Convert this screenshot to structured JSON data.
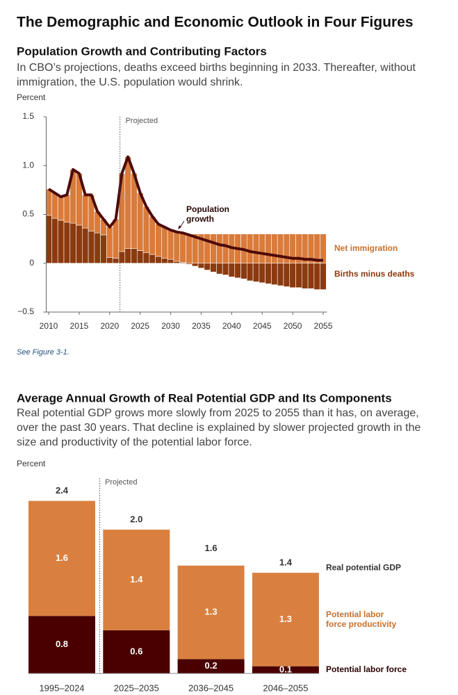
{
  "title": "The Demographic and Economic Outlook in Four Figures",
  "chart_data": [
    {
      "type": "bar_line",
      "title": "Population Growth and Contributing Factors",
      "description": "In CBO’s projections, deaths exceed births beginning in 2033. Thereafter, without immigration, the U.S. population would shrink.",
      "y_label": "Percent",
      "annotation": "Projected",
      "note": "See Figure 3-1.",
      "x": [
        2010,
        2011,
        2012,
        2013,
        2014,
        2015,
        2016,
        2017,
        2018,
        2019,
        2020,
        2021,
        2022,
        2023,
        2024,
        2025,
        2026,
        2027,
        2028,
        2029,
        2030,
        2031,
        2032,
        2033,
        2034,
        2035,
        2036,
        2037,
        2038,
        2039,
        2040,
        2041,
        2042,
        2043,
        2044,
        2045,
        2046,
        2047,
        2048,
        2049,
        2050,
        2051,
        2052,
        2053,
        2054,
        2055
      ],
      "series": [
        {
          "name": "Net immigration",
          "color": "#d97b3a",
          "values": [
            0.27,
            0.26,
            0.24,
            0.28,
            0.55,
            0.53,
            0.34,
            0.37,
            0.22,
            0.16,
            0.31,
            0.4,
            0.8,
            0.94,
            0.77,
            0.59,
            0.47,
            0.39,
            0.33,
            0.32,
            0.3,
            0.3,
            0.3,
            0.3,
            0.3,
            0.3,
            0.3,
            0.3,
            0.3,
            0.3,
            0.3,
            0.3,
            0.3,
            0.3,
            0.3,
            0.3,
            0.3,
            0.3,
            0.3,
            0.3,
            0.3,
            0.3,
            0.3,
            0.3,
            0.3,
            0.3
          ]
        },
        {
          "name": "Births minus deaths",
          "color": "#8b3a0f",
          "values": [
            0.49,
            0.46,
            0.44,
            0.42,
            0.41,
            0.39,
            0.36,
            0.33,
            0.31,
            0.29,
            0.06,
            0.05,
            0.12,
            0.15,
            0.15,
            0.13,
            0.11,
            0.09,
            0.07,
            0.05,
            0.04,
            0.02,
            0.01,
            -0.01,
            -0.03,
            -0.05,
            -0.07,
            -0.09,
            -0.11,
            -0.12,
            -0.14,
            -0.15,
            -0.16,
            -0.18,
            -0.19,
            -0.2,
            -0.21,
            -0.22,
            -0.23,
            -0.24,
            -0.25,
            -0.25,
            -0.26,
            -0.26,
            -0.27,
            -0.27
          ]
        },
        {
          "name": "Population growth",
          "type": "line",
          "color": "#4d0a0a",
          "values": [
            0.76,
            0.72,
            0.68,
            0.7,
            0.96,
            0.92,
            0.7,
            0.7,
            0.53,
            0.45,
            0.37,
            0.45,
            0.92,
            1.09,
            0.92,
            0.72,
            0.58,
            0.48,
            0.4,
            0.37,
            0.34,
            0.32,
            0.31,
            0.29,
            0.27,
            0.25,
            0.23,
            0.21,
            0.19,
            0.18,
            0.16,
            0.15,
            0.14,
            0.12,
            0.11,
            0.1,
            0.09,
            0.08,
            0.07,
            0.06,
            0.05,
            0.05,
            0.04,
            0.04,
            0.03,
            0.03
          ]
        }
      ],
      "xlim": [
        2009.6,
        2055.6
      ],
      "xticks": [
        2010,
        2015,
        2020,
        2025,
        2030,
        2035,
        2040,
        2045,
        2050,
        2055
      ],
      "ylim": [
        -0.5,
        1.5
      ],
      "yticks": [
        {
          "value": -0.5,
          "label": "−0.5"
        },
        0,
        0.5,
        {
          "value": 1,
          "label": "1.0"
        },
        1.5
      ]
    },
    {
      "type": "stacked_bar",
      "title": "Average Annual Growth of Real Potential GDP and Its Components",
      "description": "Real potential GDP grows more slowly from 2025 to 2055 than it has, on average, over the past 30 years. That decline is explained by slower projected growth in the size and productivity of the potential labor force.",
      "y_label": "Percent",
      "annotation": "Projected",
      "categories": [
        "1995–2024",
        "2025–2035",
        "2036–2045",
        "2046–2055"
      ],
      "series": [
        {
          "name": "Potential labor force",
          "color": "#4a0000",
          "values": [
            0.8,
            0.6,
            0.2,
            0.1
          ]
        },
        {
          "name": "Potential labor force productivity",
          "color": "#d98040",
          "values": [
            1.6,
            1.4,
            1.3,
            1.3
          ]
        }
      ],
      "totals": {
        "name": "Real potential GDP",
        "values": [
          2.4,
          2,
          1.6,
          1.4
        ],
        "value_labels": [
          "2.4",
          "2.0",
          "1.6",
          "1.4"
        ]
      },
      "ylim": [
        0,
        2.6
      ]
    }
  ]
}
